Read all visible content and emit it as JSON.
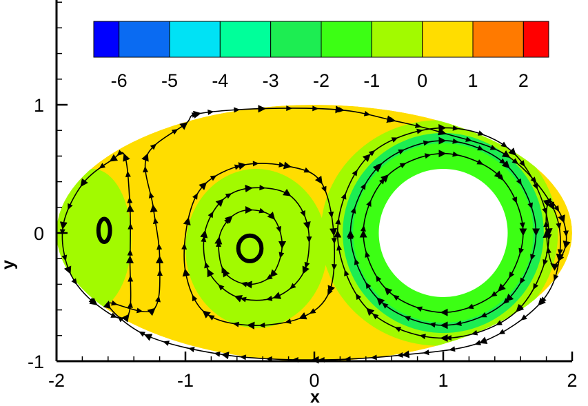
{
  "chart_data": {
    "type": "heatmap",
    "subtype": "contour-with-streamlines",
    "xlabel": "x",
    "ylabel": "y",
    "xlim": [
      -2,
      2
    ],
    "ylim": [
      -1,
      1.3
    ],
    "x_ticks": [
      -2,
      -1,
      0,
      1,
      2
    ],
    "y_ticks": [
      -1,
      0,
      1
    ],
    "grid": false,
    "colorbar": {
      "placement": "top, horizontal",
      "levels": [
        -6.5,
        -6,
        -5.5,
        -5,
        -4.5,
        -4,
        -3.5,
        -3,
        -2.5,
        -2,
        -1.5,
        -1,
        -0.5,
        0,
        0.5,
        1,
        1.5,
        2,
        2.5
      ],
      "bands": [
        {
          "from": -6.5,
          "to": -6,
          "color": "#0000ff"
        },
        {
          "from": -6,
          "to": -5,
          "color": "#0a6bf2"
        },
        {
          "from": -5,
          "to": -4,
          "color": "#00e2f5"
        },
        {
          "from": -4,
          "to": -3,
          "color": "#00ff9a"
        },
        {
          "from": -3,
          "to": -2,
          "color": "#1ded52"
        },
        {
          "from": -2,
          "to": -1,
          "color": "#3cff14"
        },
        {
          "from": -1,
          "to": 0,
          "color": "#a2fa00"
        },
        {
          "from": 0,
          "to": 1,
          "color": "#ffdd00"
        },
        {
          "from": 1,
          "to": 2,
          "color": "#ff7a00"
        },
        {
          "from": 2,
          "to": 2.5,
          "color": "#ff0000"
        }
      ],
      "tick_labels": [
        "-6",
        "-5",
        "-4",
        "-3",
        "-2",
        "-1",
        "0",
        "1",
        "2"
      ],
      "tick_values": [
        -6,
        -5,
        -4,
        -3,
        -2,
        -1,
        0,
        1,
        2
      ]
    },
    "domain": {
      "shape": "ellipse",
      "center": [
        0,
        0
      ],
      "semi_axes": [
        2,
        1
      ]
    },
    "obstacle": {
      "shape": "circle",
      "center": [
        1,
        0
      ],
      "radius": 0.5
    },
    "field_regions": [
      {
        "name": "outer-flow",
        "value": 0.5,
        "color": "#ffdd00",
        "kind": "ellipse",
        "center": [
          0,
          0
        ],
        "rx": 2,
        "ry": 1
      },
      {
        "name": "left-edge",
        "value": -0.5,
        "color": "#a2fa00",
        "kind": "ellipse",
        "center": [
          -1.72,
          -0.05
        ],
        "rx": 0.3,
        "ry": 0.55
      },
      {
        "name": "central-vortex",
        "value": -0.5,
        "color": "#a2fa00",
        "kind": "ellipse",
        "center": [
          -0.45,
          -0.12
        ],
        "rx": 0.55,
        "ry": 0.62
      },
      {
        "name": "right-band",
        "value": -0.5,
        "color": "#a2fa00",
        "kind": "ellipse",
        "center": [
          0.97,
          0
        ],
        "rx": 0.92,
        "ry": 0.88
      },
      {
        "name": "annulus",
        "value": -2.5,
        "color": "#1ded52",
        "kind": "ellipse",
        "center": [
          1,
          0
        ],
        "rx": 0.78,
        "ry": 0.78
      },
      {
        "name": "annulus-inner",
        "value": -1.5,
        "color": "#3cff14",
        "kind": "ellipse",
        "center": [
          1,
          0
        ],
        "rx": 0.7,
        "ry": 0.7
      }
    ],
    "streamlines": [
      {
        "name": "outer-loop",
        "points": [
          [
            -0.9,
            0.93
          ],
          [
            -0.4,
            0.97
          ],
          [
            0.2,
            0.96
          ],
          [
            0.6,
            0.88
          ],
          [
            1.0,
            0.78
          ],
          [
            1.5,
            0.6
          ],
          [
            1.85,
            0.2
          ],
          [
            1.9,
            -0.2
          ],
          [
            1.75,
            -0.55
          ],
          [
            1.3,
            -0.85
          ],
          [
            0.7,
            -0.95
          ],
          [
            0.0,
            -0.99
          ],
          [
            -0.7,
            -0.95
          ],
          [
            -1.3,
            -0.8
          ],
          [
            -1.6,
            -0.55
          ],
          [
            -1.25,
            -0.6
          ],
          [
            -1.2,
            -0.2
          ],
          [
            -1.25,
            0.2
          ],
          [
            -1.3,
            0.6
          ],
          [
            -1.0,
            0.85
          ]
        ],
        "closed": true
      },
      {
        "name": "left-cell",
        "points": [
          [
            -1.57,
            0.57
          ],
          [
            -1.8,
            0.38
          ],
          [
            -1.95,
            0.05
          ],
          [
            -1.9,
            -0.3
          ],
          [
            -1.7,
            -0.55
          ],
          [
            -1.45,
            -0.65
          ],
          [
            -1.43,
            -0.2
          ],
          [
            -1.43,
            0.2
          ],
          [
            -1.47,
            0.6
          ]
        ],
        "closed": true
      },
      {
        "name": "vortex-outer",
        "points": [
          [
            -0.55,
            0.53
          ],
          [
            -0.2,
            0.52
          ],
          [
            0.05,
            0.4
          ],
          [
            0.15,
            0.0
          ],
          [
            0.12,
            -0.45
          ],
          [
            -0.1,
            -0.66
          ],
          [
            -0.5,
            -0.72
          ],
          [
            -0.85,
            -0.62
          ],
          [
            -1.0,
            -0.3
          ],
          [
            -0.98,
            0.1
          ],
          [
            -0.85,
            0.38
          ]
        ],
        "closed": true
      },
      {
        "name": "vortex-mid",
        "points": [
          [
            -0.5,
            0.35
          ],
          [
            -0.2,
            0.3
          ],
          [
            -0.05,
            0.05
          ],
          [
            -0.08,
            -0.3
          ],
          [
            -0.3,
            -0.5
          ],
          [
            -0.6,
            -0.5
          ],
          [
            -0.82,
            -0.3
          ],
          [
            -0.85,
            0.0
          ],
          [
            -0.72,
            0.25
          ]
        ],
        "closed": true
      },
      {
        "name": "vortex-inner",
        "points": [
          [
            -0.5,
            0.18
          ],
          [
            -0.32,
            0.12
          ],
          [
            -0.25,
            -0.1
          ],
          [
            -0.33,
            -0.33
          ],
          [
            -0.52,
            -0.4
          ],
          [
            -0.7,
            -0.3
          ],
          [
            -0.74,
            -0.05
          ],
          [
            -0.65,
            0.12
          ]
        ],
        "closed": true
      },
      {
        "name": "ring-outer",
        "points": [
          [
            1.0,
            0.82
          ],
          [
            1.55,
            0.62
          ],
          [
            1.82,
            0.0
          ],
          [
            1.58,
            -0.6
          ],
          [
            1.0,
            -0.82
          ],
          [
            0.42,
            -0.6
          ],
          [
            0.18,
            0.0
          ],
          [
            0.42,
            0.6
          ]
        ],
        "closed": true
      },
      {
        "name": "ring-mid",
        "points": [
          [
            1.0,
            0.72
          ],
          [
            1.5,
            0.52
          ],
          [
            1.72,
            0.0
          ],
          [
            1.5,
            -0.52
          ],
          [
            1.0,
            -0.72
          ],
          [
            0.5,
            -0.52
          ],
          [
            0.28,
            0.0
          ],
          [
            0.5,
            0.52
          ]
        ],
        "closed": true
      },
      {
        "name": "ring-inner",
        "points": [
          [
            1.0,
            0.62
          ],
          [
            1.44,
            0.44
          ],
          [
            1.62,
            0.0
          ],
          [
            1.44,
            -0.44
          ],
          [
            1.0,
            -0.62
          ],
          [
            0.56,
            -0.44
          ],
          [
            0.38,
            0.0
          ],
          [
            0.56,
            0.44
          ]
        ],
        "closed": true
      },
      {
        "name": "right-cell",
        "points": [
          [
            1.82,
            0.25
          ],
          [
            1.93,
            0.1
          ],
          [
            1.95,
            -0.1
          ],
          [
            1.85,
            -0.25
          ],
          [
            1.8,
            0.0
          ]
        ],
        "closed": true
      }
    ],
    "closed_contours": [
      {
        "name": "left-vortex-core",
        "center": [
          -1.63,
          0.02
        ],
        "rx": 0.045,
        "ry": 0.09
      },
      {
        "name": "central-vortex-core",
        "center": [
          -0.5,
          -0.12
        ],
        "rx": 0.09,
        "ry": 0.1
      }
    ]
  }
}
